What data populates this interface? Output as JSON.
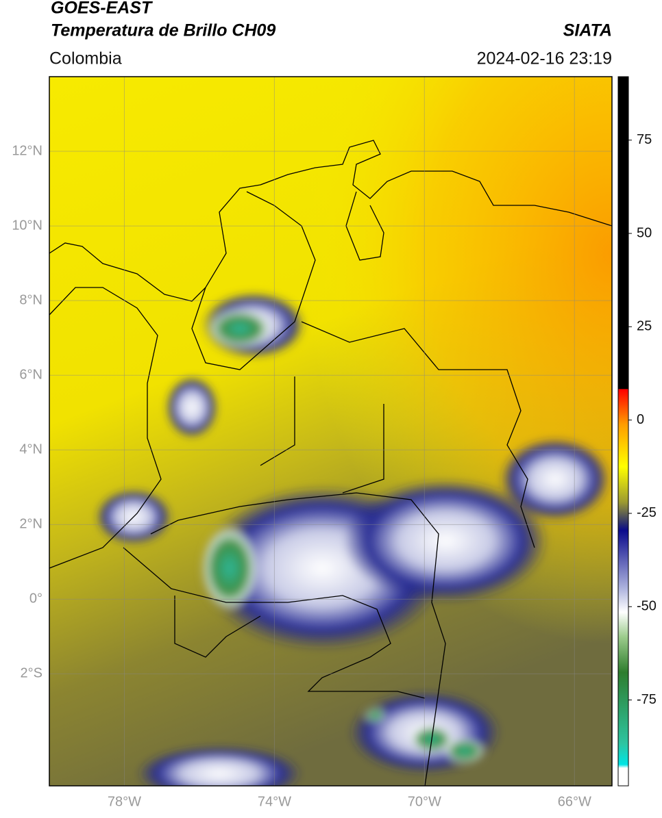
{
  "header": {
    "title": "GOES-EAST",
    "subtitle": "Temperatura de Brillo CH09",
    "source": "SIATA",
    "region": "Colombia",
    "datetime": "2024-02-16 23:19"
  },
  "map": {
    "xlim": [
      -80,
      -65
    ],
    "ylim": [
      -5,
      14
    ],
    "xticks": [
      {
        "value": -78,
        "label": "78°W"
      },
      {
        "value": -74,
        "label": "74°W"
      },
      {
        "value": -70,
        "label": "70°W"
      },
      {
        "value": -66,
        "label": "66°W"
      }
    ],
    "yticks": [
      {
        "value": 12,
        "label": "12°N"
      },
      {
        "value": 10,
        "label": "10°N"
      },
      {
        "value": 8,
        "label": "8°N"
      },
      {
        "value": 6,
        "label": "6°N"
      },
      {
        "value": 4,
        "label": "4°N"
      },
      {
        "value": 2,
        "label": "2°N"
      },
      {
        "value": 0,
        "label": "0°"
      },
      {
        "value": -2,
        "label": "2°S"
      }
    ],
    "grid": true
  },
  "colorbar": {
    "lim": [
      -98,
      92
    ],
    "ticks": [
      75,
      50,
      25,
      0,
      -25,
      -50,
      -75
    ]
  }
}
